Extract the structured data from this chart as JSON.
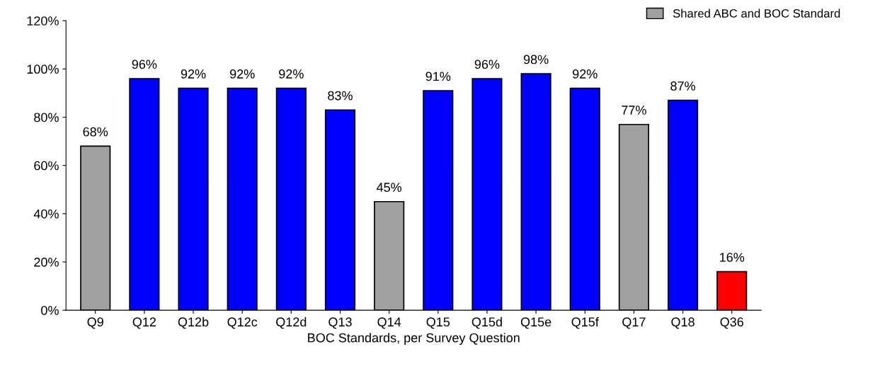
{
  "chart_data": {
    "type": "bar",
    "xlabel": "BOC Standards, per Survey Question",
    "categories": [
      "Q9",
      "Q12",
      "Q12b",
      "Q12c",
      "Q12d",
      "Q13",
      "Q14",
      "Q15",
      "Q15d",
      "Q15e",
      "Q15f",
      "Q17",
      "Q18",
      "Q36"
    ],
    "series": [
      {
        "name": "Shared ABC and BOC Standard",
        "color": "#a0a0a0",
        "values": [
          68,
          null,
          null,
          null,
          null,
          null,
          45,
          null,
          null,
          null,
          null,
          77,
          null,
          null
        ]
      },
      {
        "colors": [
          "#0000ff",
          "#0000ff",
          "#0000ff",
          "#0000ff",
          "#0000ff",
          "#0000ff",
          "#0000ff",
          "#0000ff",
          "#0000ff",
          "#0000ff",
          "#0000ff",
          "#0000ff",
          "#0000ff",
          "#ff0000"
        ],
        "values": [
          null,
          96,
          92,
          92,
          92,
          83,
          null,
          91,
          96,
          98,
          92,
          null,
          87,
          16
        ]
      }
    ],
    "ylim": [
      0,
      120
    ],
    "yticks": [
      {
        "value": 0,
        "label": "0%"
      },
      {
        "value": 20,
        "label": "20%"
      },
      {
        "value": 40,
        "label": "40%"
      },
      {
        "value": 60,
        "label": "60%"
      },
      {
        "value": 80,
        "label": "80%"
      },
      {
        "value": 100,
        "label": "100%"
      },
      {
        "value": 120,
        "label": "120%"
      }
    ],
    "value_labels": [
      "68%",
      "96%",
      "92%",
      "92%",
      "92%",
      "83%",
      "45%",
      "91%",
      "96%",
      "98%",
      "92%",
      "77%",
      "87%",
      "16%"
    ],
    "grid": false,
    "legend": "top right"
  }
}
